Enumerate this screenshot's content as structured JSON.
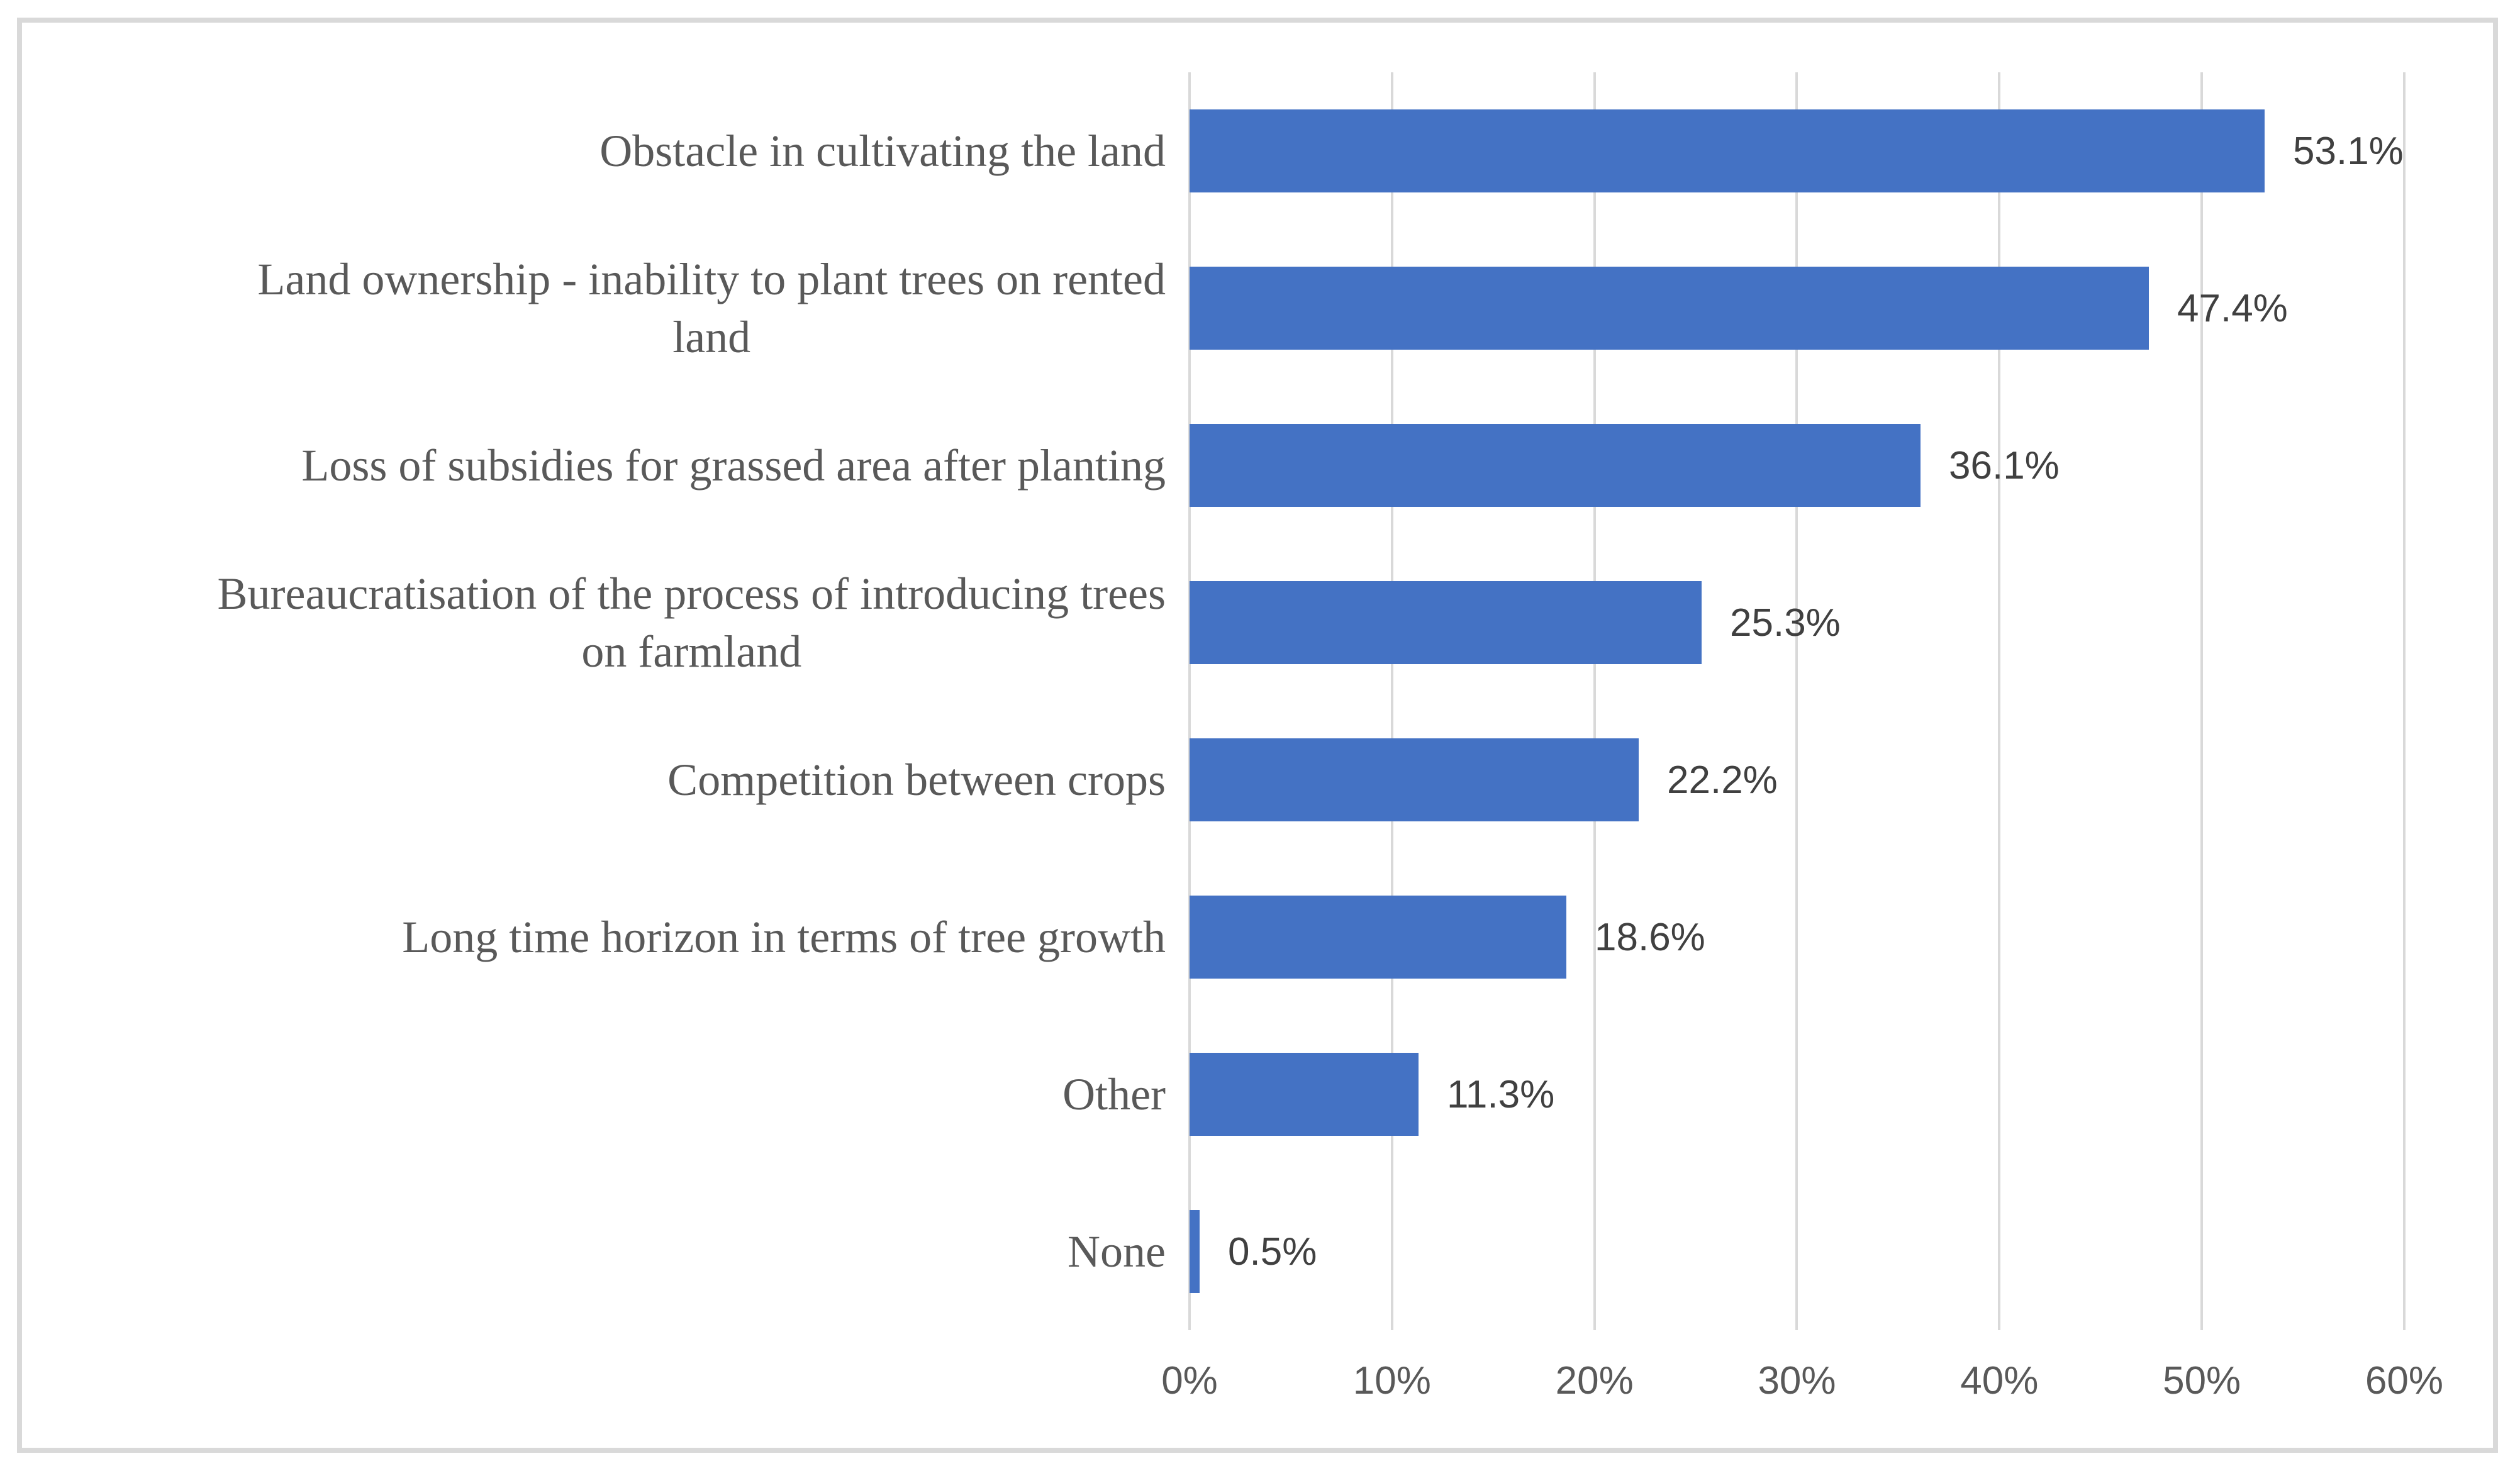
{
  "chart_data": {
    "type": "bar",
    "orientation": "horizontal",
    "title": "",
    "xlabel": "",
    "ylabel": "",
    "categories": [
      "Obstacle in cultivating the land",
      "Land ownership - inability to plant trees on rented\nland",
      "Loss of subsidies for grassed area after planting",
      "Bureaucratisation of the process of introducing trees\non farmland",
      "Competition between crops",
      "Long time horizon in terms of tree growth",
      "Other",
      "None"
    ],
    "values": [
      53.1,
      47.4,
      36.1,
      25.3,
      22.2,
      18.6,
      11.3,
      0.5
    ],
    "value_labels": [
      "53.1%",
      "47.4%",
      "36.1%",
      "25.3%",
      "22.2%",
      "18.6%",
      "11.3%",
      "0.5%"
    ],
    "xlim": [
      0,
      60
    ],
    "x_tick_values": [
      0,
      10,
      20,
      30,
      40,
      50,
      60
    ],
    "x_tick_labels": [
      "0%",
      "10%",
      "20%",
      "30%",
      "40%",
      "50%",
      "60%"
    ],
    "grid": true,
    "legend": false,
    "bar_color": "#4472C4",
    "gridline_color": "#D9D9D9",
    "frame_border_color": "#D9D9D9",
    "category_label_color": "#595959",
    "axis_label_color": "#595959",
    "value_label_color": "#404040"
  }
}
